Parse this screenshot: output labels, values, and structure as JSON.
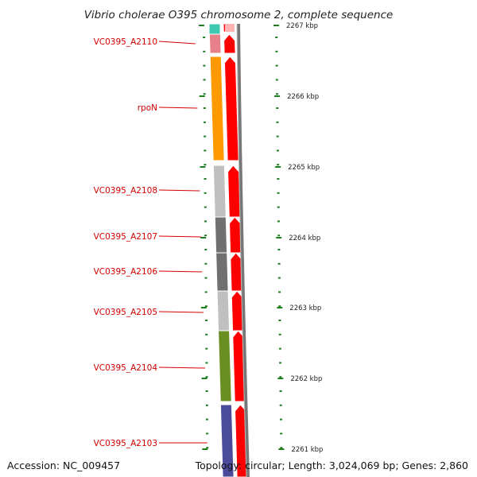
{
  "title": "Vibrio cholerae O395 chromosome 2, complete sequence",
  "colors": {
    "label": "#d40000",
    "cds_arrow": "#ff0000",
    "tick": "#1e7d1e",
    "backbone": "#777777"
  },
  "genes": [
    {
      "label": "VC0395_A2110",
      "color": "#e8808a"
    },
    {
      "label": "rpoN",
      "color": "#ff9900"
    },
    {
      "label": "VC0395_A2108",
      "color": "#c0c0c0"
    },
    {
      "label": "VC0395_A2107",
      "color": "#707070"
    },
    {
      "label": "VC0395_A2106",
      "color": "#707070"
    },
    {
      "label": "VC0395_A2105",
      "color": "#c0c0c0"
    },
    {
      "label": "VC0395_A2104",
      "color": "#6b8e23"
    },
    {
      "label": "VC0395_A2103",
      "color": "#4b4b9b"
    }
  ],
  "ticks": [
    "2267 kbp",
    "2266 kbp",
    "2265 kbp",
    "2264 kbp",
    "2263 kbp",
    "2262 kbp",
    "2261 kbp"
  ],
  "footer": {
    "accession": "Accession: NC_009457",
    "stats": "Topology: circular; Length: 3,024,069 bp; Genes: 2,860"
  }
}
